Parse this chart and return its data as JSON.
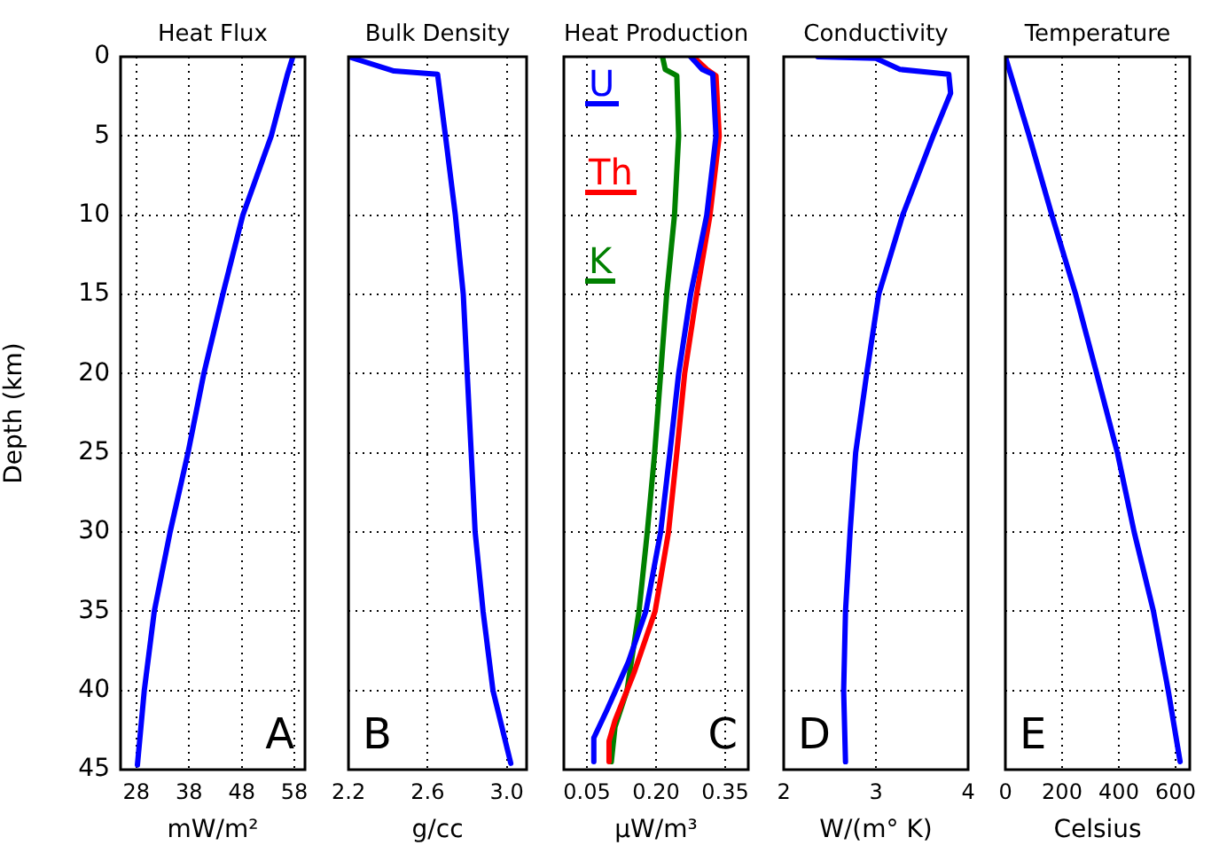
{
  "chart_data": [
    {
      "type": "line",
      "title": "Heat Flux",
      "xlabel": "mW/m²",
      "ylabel": "Depth (km)",
      "xlim": [
        25,
        60
      ],
      "xticks": [
        28,
        38,
        48,
        58
      ],
      "ylim": [
        45,
        0
      ],
      "yticks": [
        0,
        5,
        10,
        15,
        20,
        25,
        30,
        35,
        40,
        45
      ],
      "grid": true,
      "annotations": [
        "A"
      ],
      "series": [
        {
          "color": "#0000ff",
          "x": [
            57.7,
            56.6,
            53.6,
            48.2,
            44.4,
            40.8,
            37.8,
            34.4,
            31.4,
            29.5,
            28.2
          ],
          "values": [
            0,
            1.2,
            5,
            10,
            15,
            20,
            25,
            30,
            35,
            40,
            44.7
          ]
        }
      ]
    },
    {
      "type": "line",
      "title": "Bulk Density",
      "xlabel": "g/cc",
      "xlim": [
        2.2,
        3.1
      ],
      "xticks": [
        2.2,
        2.6,
        {
          "value": 3,
          "label": "3.0"
        }
      ],
      "ylim": [
        45,
        0
      ],
      "yticks": [
        0,
        5,
        10,
        15,
        20,
        25,
        30,
        35,
        40,
        45
      ],
      "grid": true,
      "tick_labels": "x",
      "annotations": [
        "B"
      ],
      "series": [
        {
          "color": "#0000ff",
          "x": [
            2.2,
            2.43,
            2.65,
            2.69,
            2.74,
            2.78,
            2.8,
            2.82,
            2.84,
            2.88,
            2.93,
            3.02
          ],
          "values": [
            0,
            0.9,
            1.1,
            5,
            10,
            15,
            20,
            25,
            30,
            35,
            40,
            44.6
          ]
        }
      ]
    },
    {
      "type": "line",
      "title": "Heat Production",
      "xlabel": "μW/m³",
      "xlim": [
        0,
        0.4
      ],
      "xticks": [
        0.05,
        {
          "value": 0.2,
          "label": "0.20"
        },
        0.35
      ],
      "ylim": [
        45,
        0
      ],
      "yticks": [
        0,
        5,
        10,
        15,
        20,
        25,
        30,
        35,
        40,
        45
      ],
      "grid": true,
      "tick_labels": "x",
      "legend": "top left",
      "annotations": [
        "C"
      ],
      "series": [
        {
          "name": "U",
          "color": "#0000ff",
          "x": [
            0.275,
            0.3,
            0.323,
            0.33,
            0.31,
            0.275,
            0.249,
            0.23,
            0.21,
            0.178,
            0.14,
            0.094,
            0.065,
            0.065
          ],
          "values": [
            0,
            0.8,
            1.1,
            5,
            10,
            15,
            20,
            25,
            30,
            35,
            38.2,
            41.2,
            43,
            44.5
          ]
        },
        {
          "name": "Th",
          "color": "#ff0000",
          "x": [
            0.281,
            0.31,
            0.33,
            0.337,
            0.317,
            0.288,
            0.262,
            0.245,
            0.227,
            0.198,
            0.152,
            0.111,
            0.098,
            0.098
          ],
          "values": [
            0,
            0.8,
            1.2,
            5,
            10,
            15,
            20,
            25,
            30,
            35,
            38.9,
            41.9,
            43.2,
            44.5
          ]
        },
        {
          "name": "K",
          "color": "#008000",
          "x": [
            0.214,
            0.22,
            0.245,
            0.249,
            0.24,
            0.223,
            0.21,
            0.197,
            0.181,
            0.163,
            0.137,
            0.111,
            0.103
          ],
          "values": [
            0,
            0.8,
            1.2,
            5,
            10,
            15,
            20,
            25,
            30,
            35,
            40,
            42.3,
            44.5
          ]
        }
      ]
    },
    {
      "type": "line",
      "title": "Conductivity",
      "xlabel": "W/(m° K)",
      "xlim": [
        2,
        4
      ],
      "xticks": [
        2,
        3,
        4
      ],
      "ylim": [
        45,
        0
      ],
      "yticks": [
        0,
        5,
        10,
        15,
        20,
        25,
        30,
        35,
        40,
        45
      ],
      "grid": true,
      "tick_labels": "x",
      "annotations": [
        "D"
      ],
      "series": [
        {
          "color": "#0000ff",
          "x": [
            2.37,
            3.0,
            3.26,
            3.79,
            3.81,
            3.62,
            3.29,
            3.03,
            2.9,
            2.78,
            2.72,
            2.67,
            2.65,
            2.67
          ],
          "values": [
            0,
            0.1,
            0.8,
            1.1,
            2.3,
            5,
            10,
            15,
            20,
            25,
            30,
            35,
            40,
            44.5
          ]
        }
      ]
    },
    {
      "type": "line",
      "title": "Temperature",
      "xlabel": "Celsius",
      "xlim": [
        0,
        650
      ],
      "xticks": [
        0,
        200,
        400,
        600
      ],
      "ylim": [
        45,
        0
      ],
      "yticks": [
        0,
        5,
        10,
        15,
        20,
        25,
        30,
        35,
        40,
        45
      ],
      "grid": true,
      "tick_labels": "x",
      "annotations": [
        "E"
      ],
      "series": [
        {
          "color": "#0000ff",
          "x": [
            0,
            84,
            164,
            248,
            322,
            395,
            454,
            522,
            574,
            616
          ],
          "values": [
            0,
            5,
            10,
            15,
            20,
            25,
            30,
            35,
            40,
            44.5
          ]
        }
      ]
    }
  ]
}
